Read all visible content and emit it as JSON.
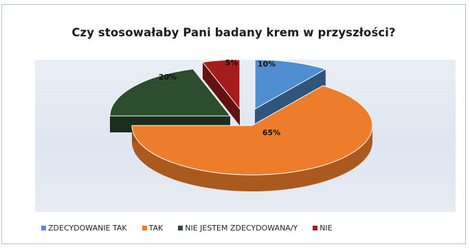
{
  "chart_data": {
    "type": "pie",
    "title": "Czy stosowałaby Pani badany krem w przyszłości?",
    "categories": [
      "ZDECYDOWANIE TAK",
      "TAK",
      "NIE JESTEM ZDECYDOWANA/Y",
      "NIE"
    ],
    "values": [
      10,
      65,
      20,
      5
    ],
    "data_labels": [
      "10%",
      "65%",
      "20%",
      "5%"
    ],
    "colors": [
      "#4f8ed0",
      "#ee7d2b",
      "#2c4d2e",
      "#a51c1c"
    ],
    "style": "3d-exploded",
    "legend_position": "bottom"
  }
}
